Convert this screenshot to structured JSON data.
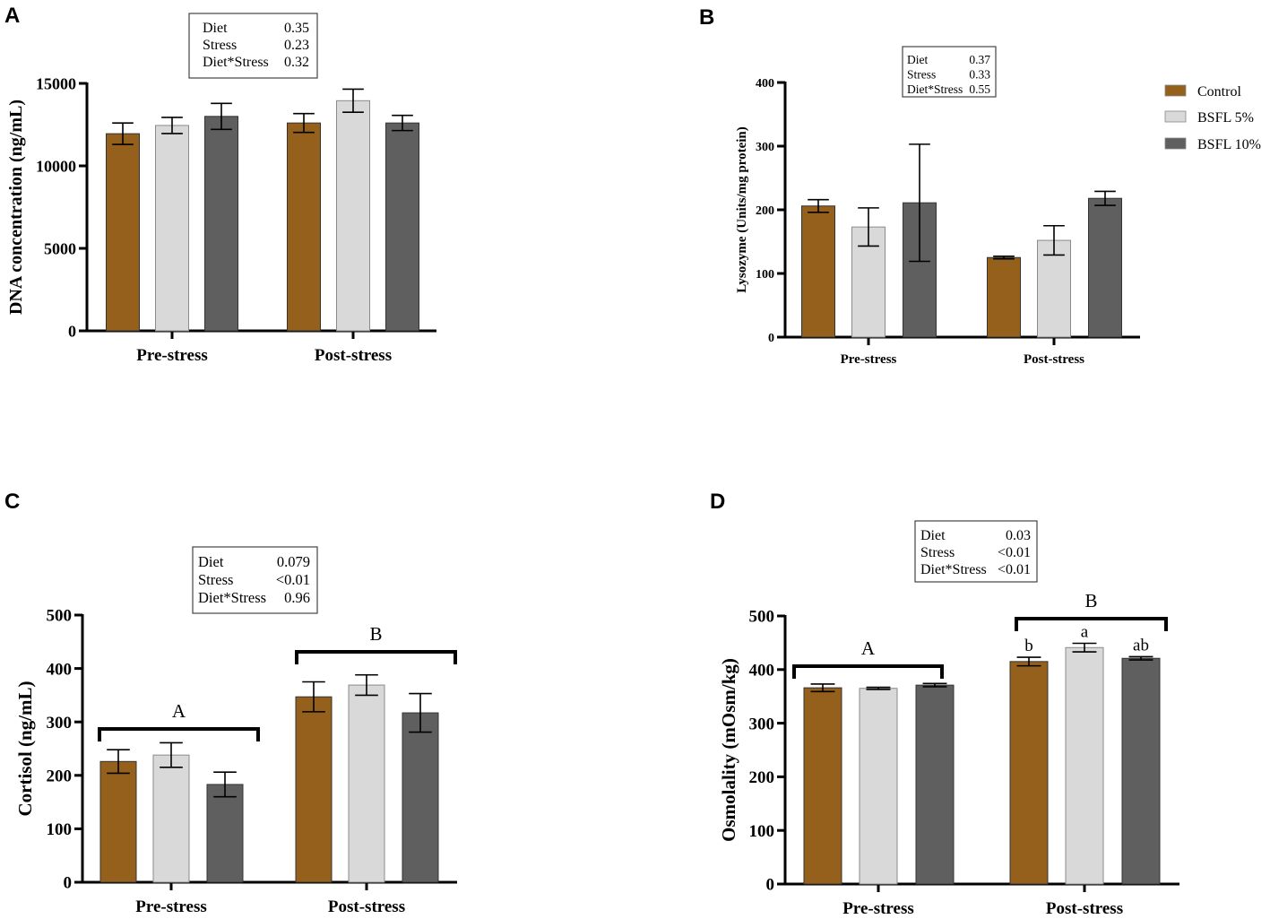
{
  "colors": {
    "Control": "#94601c",
    "BSFL 5%": "#d9d9d9",
    "BSFL 10%": "#5f5f5f"
  },
  "chart_data": [
    {
      "panel": "A",
      "type": "bar",
      "categories": [
        "Pre-stress",
        "Post-stress"
      ],
      "ylabel": "DNA concentration (ng/mL)",
      "ylim": [
        0,
        15000
      ],
      "yticks": [
        0,
        5000,
        10000,
        15000
      ],
      "series": [
        {
          "name": "Control",
          "values": [
            11950,
            12600
          ],
          "errors": [
            650,
            570
          ]
        },
        {
          "name": "BSFL 5%",
          "values": [
            12450,
            13950
          ],
          "errors": [
            490,
            700
          ]
        },
        {
          "name": "BSFL 10%",
          "values": [
            13000,
            12600
          ],
          "errors": [
            790,
            460
          ]
        }
      ],
      "stats": [
        {
          "term": "Diet",
          "p": "0.35"
        },
        {
          "term": "Stress",
          "p": "0.23"
        },
        {
          "term": "Diet*Stress",
          "p": "0.32"
        }
      ],
      "group_letters": [],
      "bar_letters": []
    },
    {
      "panel": "B",
      "type": "bar",
      "categories": [
        "Pre-stress",
        "Post-stress"
      ],
      "ylabel": "Lysozyme (Units/mg protein)",
      "ylim": [
        0,
        400
      ],
      "yticks": [
        0,
        100,
        200,
        300,
        400
      ],
      "series": [
        {
          "name": "Control",
          "values": [
            206,
            125
          ],
          "errors": [
            10,
            2
          ]
        },
        {
          "name": "BSFL 5%",
          "values": [
            173,
            152
          ],
          "errors": [
            30,
            23
          ]
        },
        {
          "name": "BSFL 10%",
          "values": [
            211,
            218
          ],
          "errors": [
            92,
            11
          ]
        }
      ],
      "stats": [
        {
          "term": "Diet",
          "p": "0.37"
        },
        {
          "term": "Stress",
          "p": "0.33"
        },
        {
          "term": "Diet*Stress",
          "p": "0.55"
        }
      ],
      "legend": {
        "position": "right",
        "entries": [
          "Control",
          "BSFL 5%",
          "BSFL 10%"
        ]
      },
      "group_letters": [],
      "bar_letters": []
    },
    {
      "panel": "C",
      "type": "bar",
      "categories": [
        "Pre-stress",
        "Post-stress"
      ],
      "ylabel": "Cortisol (ng/mL)",
      "ylim": [
        0,
        500
      ],
      "yticks": [
        0,
        100,
        200,
        300,
        400,
        500
      ],
      "series": [
        {
          "name": "Control",
          "values": [
            226,
            347
          ],
          "errors": [
            22,
            28
          ]
        },
        {
          "name": "BSFL 5%",
          "values": [
            238,
            369
          ],
          "errors": [
            23,
            19
          ]
        },
        {
          "name": "BSFL 10%",
          "values": [
            183,
            317
          ],
          "errors": [
            23,
            36
          ]
        }
      ],
      "stats": [
        {
          "term": "Diet",
          "p": "0.079"
        },
        {
          "term": "Stress",
          "p": "<0.01"
        },
        {
          "term": "Diet*Stress",
          "p": "0.96"
        }
      ],
      "group_letters": [
        "A",
        "B"
      ],
      "bar_letters": []
    },
    {
      "panel": "D",
      "type": "bar",
      "categories": [
        "Pre-stress",
        "Post-stress"
      ],
      "ylabel": "Osmolality (mOsm/kg)",
      "ylim": [
        0,
        500
      ],
      "yticks": [
        0,
        100,
        200,
        300,
        400,
        500
      ],
      "series": [
        {
          "name": "Control",
          "values": [
            366,
            415
          ],
          "errors": [
            7,
            8
          ]
        },
        {
          "name": "BSFL 5%",
          "values": [
            365,
            441
          ],
          "errors": [
            2,
            8
          ]
        },
        {
          "name": "BSFL 10%",
          "values": [
            371,
            421
          ],
          "errors": [
            3,
            3
          ]
        }
      ],
      "stats": [
        {
          "term": "Diet",
          "p": "0.03"
        },
        {
          "term": "Stress",
          "p": "<0.01"
        },
        {
          "term": "Diet*Stress",
          "p": "<0.01"
        }
      ],
      "group_letters": [
        "A",
        "B"
      ],
      "bar_letters": [
        [
          "",
          "",
          ""
        ],
        [
          "b",
          "a",
          "ab"
        ]
      ]
    }
  ]
}
